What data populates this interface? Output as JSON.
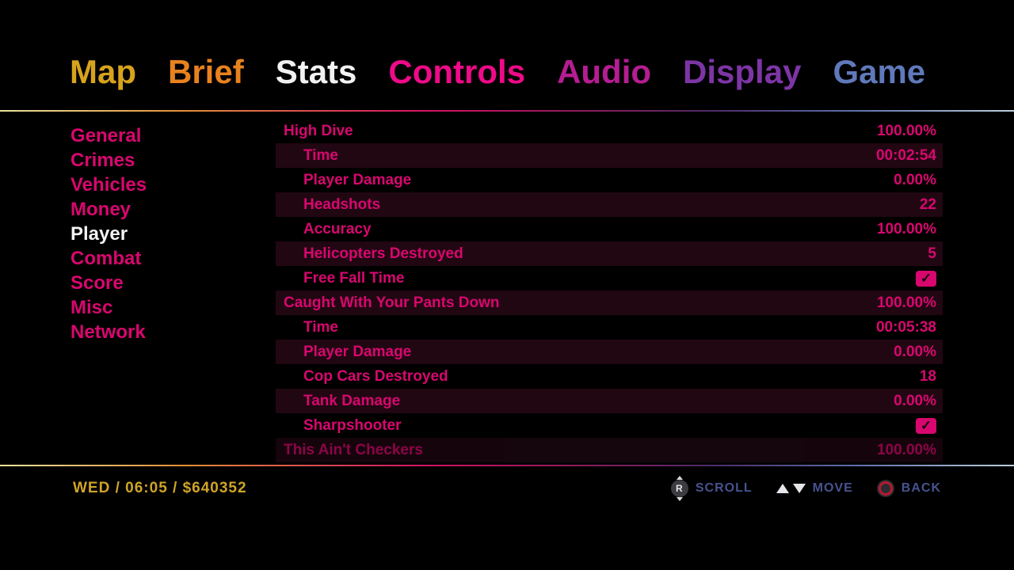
{
  "nav": {
    "selected_tab": "Stats",
    "tabs": [
      {
        "label": "Map",
        "color": "#d7a31c"
      },
      {
        "label": "Brief",
        "color": "#e8821f"
      },
      {
        "label": "Stats",
        "color": "#f2f2f2"
      },
      {
        "label": "Controls",
        "color": "#ee0a88"
      },
      {
        "label": "Audio",
        "color": "#b51d92"
      },
      {
        "label": "Display",
        "color": "#7d35a6"
      },
      {
        "label": "Game",
        "color": "#6079ba"
      }
    ]
  },
  "sidebar": {
    "selected_item": "Player",
    "items": [
      {
        "label": "General"
      },
      {
        "label": "Crimes"
      },
      {
        "label": "Vehicles"
      },
      {
        "label": "Money"
      },
      {
        "label": "Player"
      },
      {
        "label": "Combat"
      },
      {
        "label": "Score"
      },
      {
        "label": "Misc"
      },
      {
        "label": "Network"
      }
    ]
  },
  "stats": {
    "rows": [
      {
        "label": "High Dive",
        "value": "100.00%",
        "indent": 0,
        "type": "text"
      },
      {
        "label": "Time",
        "value": "00:02:54",
        "indent": 1,
        "type": "text"
      },
      {
        "label": "Player Damage",
        "value": "0.00%",
        "indent": 1,
        "type": "text"
      },
      {
        "label": "Headshots",
        "value": "22",
        "indent": 1,
        "type": "text"
      },
      {
        "label": "Accuracy",
        "value": "100.00%",
        "indent": 1,
        "type": "text"
      },
      {
        "label": "Helicopters Destroyed",
        "value": "5",
        "indent": 1,
        "type": "text"
      },
      {
        "label": "Free Fall Time",
        "value": "✓",
        "indent": 1,
        "type": "check"
      },
      {
        "label": "Caught With Your Pants Down",
        "value": "100.00%",
        "indent": 0,
        "type": "text"
      },
      {
        "label": "Time",
        "value": "00:05:38",
        "indent": 1,
        "type": "text"
      },
      {
        "label": "Player Damage",
        "value": "0.00%",
        "indent": 1,
        "type": "text"
      },
      {
        "label": "Cop Cars Destroyed",
        "value": "18",
        "indent": 1,
        "type": "text"
      },
      {
        "label": "Tank Damage",
        "value": "0.00%",
        "indent": 1,
        "type": "text"
      },
      {
        "label": "Sharpshooter",
        "value": "✓",
        "indent": 1,
        "type": "check"
      },
      {
        "label": "This Ain't Checkers",
        "value": "100.00%",
        "indent": 0,
        "type": "text"
      }
    ]
  },
  "statusbar": {
    "hud_info": "WED / 06:05 / $640352",
    "controls": [
      {
        "icon": "right-stick-updown-icon",
        "button": "R",
        "label": "SCROLL"
      },
      {
        "icon": "updown-arrows-icon",
        "label": "MOVE"
      },
      {
        "icon": "circle-button-icon",
        "label": "BACK"
      }
    ]
  },
  "colors": {
    "accent_pink": "#d8076f",
    "row_highlight": "#210712",
    "selected_white": "#f2f2f2",
    "hud_gold": "#cfa428",
    "control_text": "#47538f",
    "circle_button_red": "#b51932",
    "separator_gradient": [
      "#e9e39b",
      "#e49038",
      "#d41264",
      "#4f2a66",
      "#bccfdd"
    ]
  }
}
